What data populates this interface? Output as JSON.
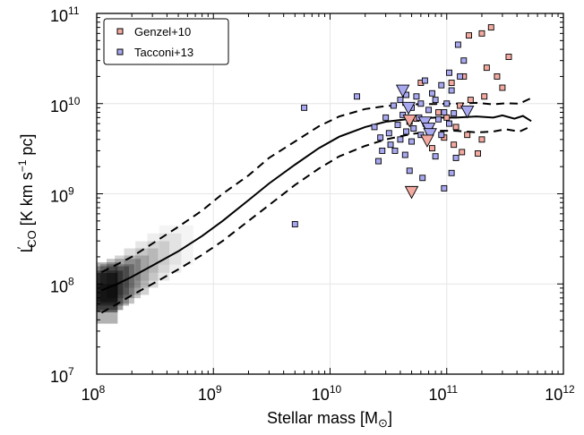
{
  "chart_data": {
    "type": "scatter",
    "xscale": "log",
    "yscale": "log",
    "xlim": [
      100000000,
      1000000000000
    ],
    "ylim": [
      10000000,
      100000000000
    ],
    "xticks": [
      {
        "base": "10",
        "exp": "8"
      },
      {
        "base": "10",
        "exp": "9"
      },
      {
        "base": "10",
        "exp": "10"
      },
      {
        "base": "10",
        "exp": "11"
      },
      {
        "base": "10",
        "exp": "12"
      }
    ],
    "yticks": [
      {
        "base": "10",
        "exp": "7"
      },
      {
        "base": "10",
        "exp": "8"
      },
      {
        "base": "10",
        "exp": "9"
      },
      {
        "base": "10",
        "exp": "10"
      },
      {
        "base": "10",
        "exp": "11"
      }
    ],
    "xlabel": {
      "main": "Stellar mass [M",
      "sub": "⊙",
      "close": "]"
    },
    "ylabel": {
      "main": "L",
      "prime": "′",
      "sub": "CO",
      "rest": " [K km s",
      "sup": "−1",
      "end": " pc]"
    },
    "grid": true,
    "legend_position": "top-left",
    "colors": {
      "genzel": "#f4aaa0",
      "tacconi": "#a8a8f0",
      "line": "#000000"
    },
    "series": [
      {
        "name": "Genzel+10",
        "marker": "square",
        "color": "#f4aaa0",
        "points": [
          [
            240000000000,
            70000000000
          ],
          [
            200000000000,
            60000000000
          ],
          [
            155000000000,
            57000000000
          ],
          [
            340000000000,
            33000000000
          ],
          [
            220000000000,
            25000000000
          ],
          [
            140000000000,
            20000000000
          ],
          [
            270000000000,
            20000000000
          ],
          [
            110000000000,
            17000000000
          ],
          [
            300000000000,
            15000000000
          ],
          [
            60000000000,
            17000000000
          ],
          [
            210000000000,
            12000000000
          ],
          [
            160000000000,
            11000000000
          ],
          [
            130000000000,
            9500000000
          ],
          [
            85000000000,
            8000000000
          ],
          [
            100000000000,
            7000000000
          ],
          [
            55000000000,
            6800000000
          ],
          [
            120000000000,
            5500000000
          ],
          [
            70000000000,
            5000000000
          ],
          [
            150000000000,
            4500000000
          ],
          [
            95000000000,
            4200000000
          ],
          [
            200000000000,
            4000000000
          ],
          [
            115000000000,
            3500000000
          ],
          [
            75000000000,
            3200000000
          ],
          [
            135000000000,
            2900000000
          ],
          [
            185000000000,
            2800000000
          ]
        ]
      },
      {
        "name": "Tacconi+13",
        "marker": "square",
        "color": "#a8a8f0",
        "points": [
          [
            125000000000,
            45000000000
          ],
          [
            140000000000,
            30000000000
          ],
          [
            105000000000,
            22000000000
          ],
          [
            130000000000,
            20000000000
          ],
          [
            65000000000,
            18000000000
          ],
          [
            90000000000,
            16000000000
          ],
          [
            110000000000,
            14000000000
          ],
          [
            75000000000,
            13000000000
          ],
          [
            45000000000,
            12500000000
          ],
          [
            55000000000,
            12000000000
          ],
          [
            80000000000,
            11000000000
          ],
          [
            17000000000,
            12000000000
          ],
          [
            40000000000,
            11000000000
          ],
          [
            60000000000,
            10000000000
          ],
          [
            100000000000,
            10000000000
          ],
          [
            35000000000,
            9500000000
          ],
          [
            50000000000,
            9000000000
          ],
          [
            6000000000,
            9000000000
          ],
          [
            70000000000,
            8500000000
          ],
          [
            95000000000,
            8000000000
          ],
          [
            115000000000,
            7800000000
          ],
          [
            42000000000,
            7500000000
          ],
          [
            30000000000,
            7000000000
          ],
          [
            58000000000,
            7000000000
          ],
          [
            85000000000,
            6700000000
          ],
          [
            48000000000,
            6300000000
          ],
          [
            66000000000,
            6000000000
          ],
          [
            105000000000,
            6000000000
          ],
          [
            38000000000,
            5800000000
          ],
          [
            24000000000,
            5500000000
          ],
          [
            52000000000,
            5300000000
          ],
          [
            72000000000,
            5200000000
          ],
          [
            45000000000,
            4900000000
          ],
          [
            32000000000,
            4700000000
          ],
          [
            60000000000,
            4500000000
          ],
          [
            90000000000,
            4500000000
          ],
          [
            27000000000,
            4200000000
          ],
          [
            40000000000,
            4000000000
          ],
          [
            50000000000,
            3800000000
          ],
          [
            33000000000,
            3500000000
          ],
          [
            28000000000,
            3000000000
          ],
          [
            36000000000,
            3000000000
          ],
          [
            44000000000,
            2700000000
          ],
          [
            80000000000,
            2600000000
          ],
          [
            120000000000,
            2500000000
          ],
          [
            26000000000,
            2300000000
          ],
          [
            48000000000,
            1800000000
          ],
          [
            110000000000,
            1700000000
          ],
          [
            62000000000,
            1500000000
          ],
          [
            95000000000,
            1150000000
          ],
          [
            5000000000,
            460000000
          ]
        ]
      }
    ],
    "upper_limits": [
      {
        "series": "Tacconi+13",
        "color": "#a8a8f0",
        "points": [
          [
            42000000000,
            14000000000
          ],
          [
            47000000000,
            9000000000
          ],
          [
            65000000000,
            6200000000
          ],
          [
            70000000000,
            5300000000
          ],
          [
            150000000000,
            8200000000
          ],
          [
            72000000000,
            4600000000
          ]
        ]
      },
      {
        "series": "Genzel+10",
        "color": "#f4aaa0",
        "points": [
          [
            50000000000,
            1050000000
          ],
          [
            68000000000,
            3900000000
          ],
          [
            48000000000,
            6500000000
          ]
        ]
      }
    ],
    "median_line": {
      "x": [
        110000000,
        150000000,
        200000000,
        300000000,
        500000000,
        800000000,
        1200000000,
        2000000000,
        3000000000,
        5000000000,
        8000000000,
        12000000000,
        20000000000,
        30000000000,
        50000000000,
        80000000000,
        120000000000,
        180000000000,
        250000000000,
        300000000000,
        380000000000,
        450000000000,
        530000000000
      ],
      "y": [
        85000000,
        100000000,
        120000000,
        160000000,
        230000000,
        340000000,
        500000000,
        850000000,
        1300000000,
        2100000000,
        3200000000,
        4300000000,
        5500000000,
        6300000000,
        6800000000,
        7000000000,
        7000000000,
        7200000000,
        7000000000,
        7400000000,
        6800000000,
        7300000000,
        6400000000
      ]
    },
    "upper_dashed": {
      "x": [
        110000000,
        150000000,
        200000000,
        300000000,
        500000000,
        800000000,
        1200000000,
        2000000000,
        3000000000,
        5000000000,
        8000000000,
        12000000000,
        20000000000,
        30000000000,
        50000000000,
        80000000000,
        120000000000,
        180000000000,
        250000000000,
        320000000000,
        420000000000,
        530000000000
      ],
      "y": [
        135000000,
        165000000,
        200000000,
        280000000,
        430000000,
        650000000,
        1000000000,
        1600000000,
        2500000000,
        3800000000,
        5600000000,
        7200000000,
        8700000000,
        9400000000,
        9800000000,
        9900000000,
        10000000000,
        10200000000,
        9800000000,
        10100000000,
        10000000000,
        11500000000
      ]
    },
    "lower_dashed": {
      "x": [
        110000000,
        150000000,
        200000000,
        300000000,
        500000000,
        800000000,
        1200000000,
        2000000000,
        3000000000,
        5000000000,
        8000000000,
        12000000000,
        20000000000,
        30000000000,
        50000000000,
        80000000000,
        120000000000,
        180000000000,
        250000000000,
        320000000000,
        420000000000,
        530000000000
      ],
      "y": [
        48000000,
        60000000,
        75000000,
        100000000,
        145000000,
        210000000,
        300000000,
        500000000,
        750000000,
        1250000000,
        1900000000,
        2600000000,
        3400000000,
        4000000000,
        4600000000,
        5000000000,
        5000000000,
        4800000000,
        4900000000,
        5200000000,
        4900000000,
        5600000000
      ]
    },
    "density": [
      {
        "x": 108000000,
        "y": 80000000,
        "w": 0.8
      },
      {
        "x": 108000000,
        "y": 60000000,
        "w": 0.55
      },
      {
        "x": 108000000,
        "y": 105000000,
        "w": 0.55
      },
      {
        "x": 120000000,
        "y": 85000000,
        "w": 0.7
      },
      {
        "x": 135000000,
        "y": 95000000,
        "w": 0.55
      },
      {
        "x": 150000000,
        "y": 100000000,
        "w": 0.45
      },
      {
        "x": 170000000,
        "y": 115000000,
        "w": 0.4
      },
      {
        "x": 200000000,
        "y": 125000000,
        "w": 0.32
      },
      {
        "x": 240000000,
        "y": 150000000,
        "w": 0.25
      },
      {
        "x": 300000000,
        "y": 180000000,
        "w": 0.18
      },
      {
        "x": 380000000,
        "y": 220000000,
        "w": 0.12
      },
      {
        "x": 480000000,
        "y": 270000000,
        "w": 0.08
      }
    ]
  }
}
